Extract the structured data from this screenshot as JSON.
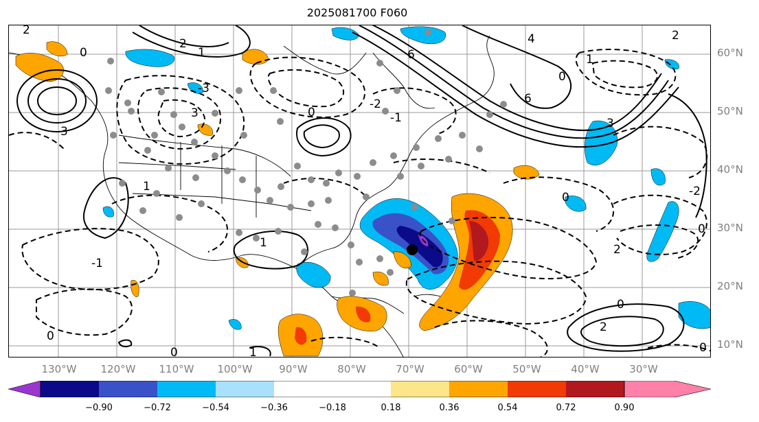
{
  "title": "2025081700 F060",
  "lat_labels": [
    "60°N",
    "50°N",
    "40°N",
    "30°N",
    "20°N",
    "10°N"
  ],
  "lon_labels": [
    "130°W",
    "120°W",
    "110°W",
    "100°W",
    "90°W",
    "80°W",
    "70°W",
    "60°W",
    "50°W",
    "40°W",
    "30°W"
  ],
  "colorbar": {
    "ticks": [
      "−0.90",
      "−0.72",
      "−0.54",
      "−0.36",
      "−0.18",
      "0.18",
      "0.36",
      "0.54",
      "0.72",
      "0.90"
    ],
    "colors": [
      "#9a35d0",
      "#0b0b8a",
      "#3a52c8",
      "#00baf5",
      "#a9e0fa",
      "#ffffff",
      "#fde68a",
      "#ffa500",
      "#f23a05",
      "#b2191e",
      "#ff80a8"
    ]
  },
  "contour_labels": [
    "2",
    "0",
    "6",
    "4",
    "3",
    "2",
    "1",
    "0",
    "-1",
    "-2",
    "-3",
    "0",
    "3",
    "6",
    "2",
    "1",
    "0",
    "-2",
    "1",
    "2",
    "0",
    "-1",
    "0",
    "0",
    "1",
    "2",
    "1",
    "0",
    "0",
    "3"
  ],
  "storm_marker": "black circle"
}
